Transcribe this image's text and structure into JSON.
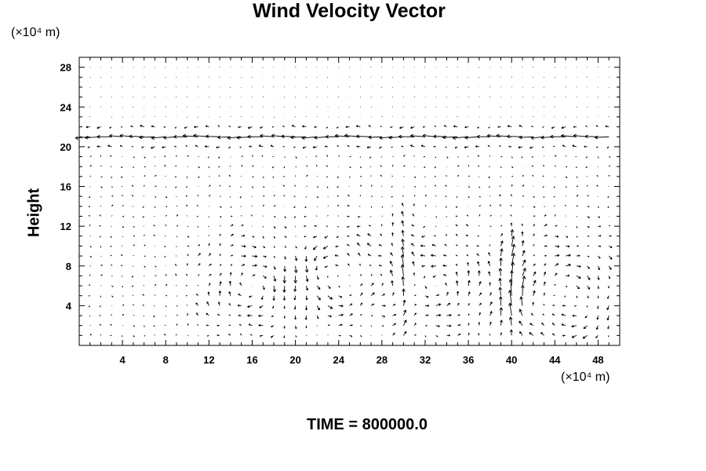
{
  "chart_data": {
    "type": "quiver",
    "title": "Wind Velocity Vector",
    "ylabel": "Height",
    "x_unit_label": "(×10⁴ m)",
    "y_unit_label": "(×10⁴ m)",
    "footer": "TIME = 800000.0",
    "xlim": [
      0,
      50
    ],
    "ylim": [
      0,
      29
    ],
    "xticks": [
      4,
      8,
      12,
      16,
      20,
      24,
      28,
      32,
      36,
      40,
      44,
      48
    ],
    "yticks": [
      4,
      8,
      12,
      16,
      20,
      24,
      28
    ],
    "grid_spacing_x": 1,
    "grid_spacing_y": 1,
    "features": {
      "jet_layer": {
        "height": 21,
        "direction": "westward"
      },
      "vortices": [
        {
          "x": 16,
          "y": 6,
          "radius": 4,
          "rotation": "clockwise"
        },
        {
          "x": 24,
          "y": 7,
          "radius": 4,
          "rotation": "counterclockwise"
        },
        {
          "x": 33,
          "y": 6,
          "radius": 4,
          "rotation": "counterclockwise"
        },
        {
          "x": 45,
          "y": 5,
          "radius": 5,
          "rotation": "clockwise"
        }
      ],
      "updrafts": [
        {
          "x": 30,
          "y": 7
        },
        {
          "x": 40,
          "y": 6
        }
      ]
    },
    "colors": {
      "arrow": "#000000",
      "axis": "#000000"
    }
  }
}
